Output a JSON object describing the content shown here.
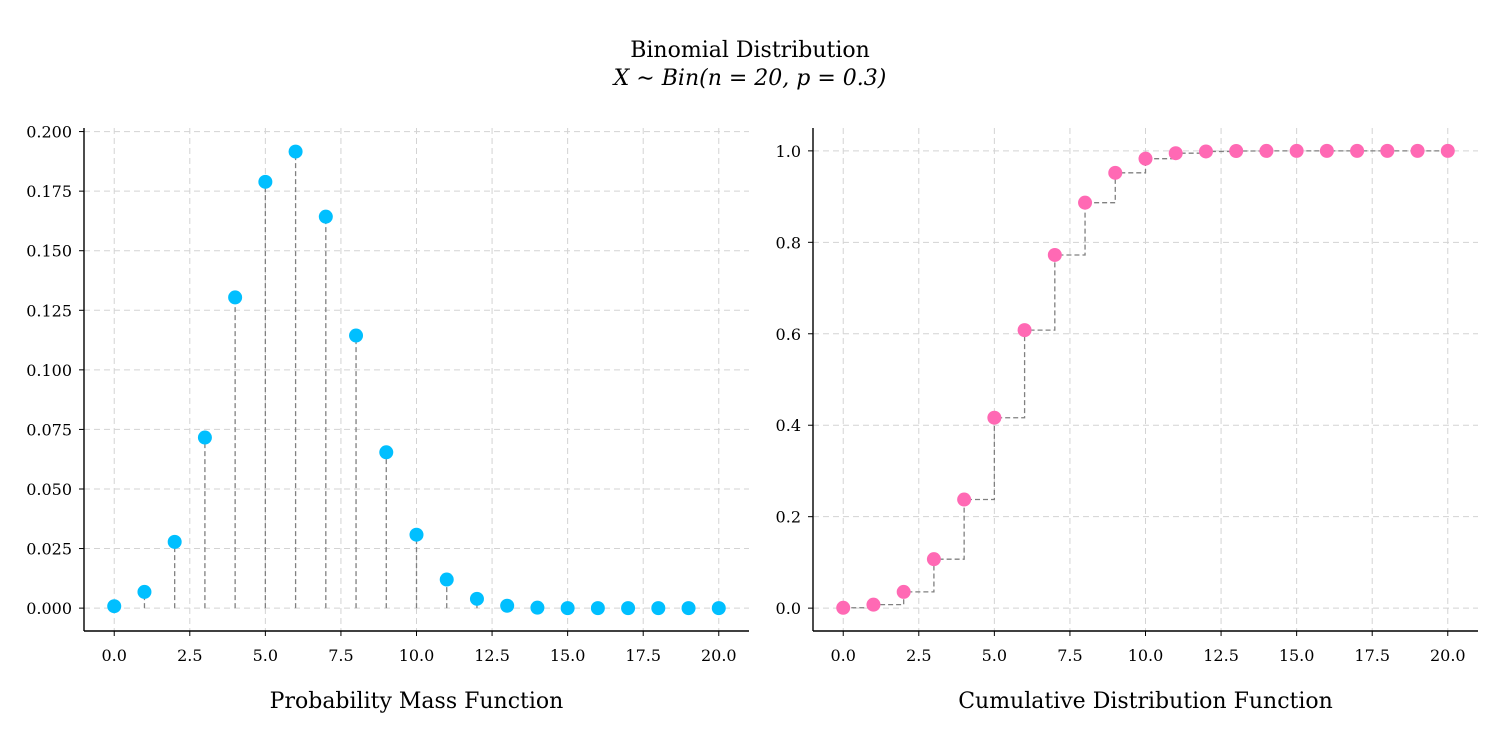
{
  "figure": {
    "title": "Binomial Distribution",
    "subtitle": "X ∼ Bin(n = 20, p = 0.3)"
  },
  "colors": {
    "pmf_marker": "#00BFFF",
    "cdf_marker": "#FF69B4",
    "stem_line": "#808080",
    "grid": "#D3D3D3",
    "axis": "#000000"
  },
  "chart_data": [
    {
      "type": "stem",
      "id": "pmf",
      "title": "",
      "xlabel": "Probability Mass Function",
      "ylabel": "",
      "xlim": [
        -1,
        21
      ],
      "ylim": [
        -0.0096,
        0.2015
      ],
      "xticks": [
        0,
        2.5,
        5,
        7.5,
        10,
        12.5,
        15,
        17.5,
        20
      ],
      "xtick_labels": [
        "0.0",
        "2.5",
        "5.0",
        "7.5",
        "10.0",
        "12.5",
        "15.0",
        "17.5",
        "20.0"
      ],
      "yticks": [
        0,
        0.025,
        0.05,
        0.075,
        0.1,
        0.125,
        0.15,
        0.175,
        0.2
      ],
      "ytick_labels": [
        "0.000",
        "0.025",
        "0.050",
        "0.075",
        "0.100",
        "0.125",
        "0.150",
        "0.175",
        "0.200"
      ],
      "grid": true,
      "x": [
        0,
        1,
        2,
        3,
        4,
        5,
        6,
        7,
        8,
        9,
        10,
        11,
        12,
        13,
        14,
        15,
        16,
        17,
        18,
        19,
        20
      ],
      "values": [
        0.0008,
        0.0068,
        0.0278,
        0.0716,
        0.1304,
        0.1789,
        0.1916,
        0.1643,
        0.1144,
        0.0654,
        0.0308,
        0.012,
        0.0039,
        0.001,
        0.0002,
        0.0,
        0.0,
        0.0,
        0.0,
        0.0,
        0.0
      ]
    },
    {
      "type": "step",
      "id": "cdf",
      "title": "",
      "xlabel": "Cumulative Distribution Function",
      "ylabel": "",
      "xlim": [
        -1,
        21
      ],
      "ylim": [
        -0.05,
        1.05
      ],
      "xticks": [
        0,
        2.5,
        5,
        7.5,
        10,
        12.5,
        15,
        17.5,
        20
      ],
      "xtick_labels": [
        "0.0",
        "2.5",
        "5.0",
        "7.5",
        "10.0",
        "12.5",
        "15.0",
        "17.5",
        "20.0"
      ],
      "yticks": [
        0,
        0.2,
        0.4,
        0.6,
        0.8,
        1.0
      ],
      "ytick_labels": [
        "0.0",
        "0.2",
        "0.4",
        "0.6",
        "0.8",
        "1.0"
      ],
      "grid": true,
      "x": [
        0,
        1,
        2,
        3,
        4,
        5,
        6,
        7,
        8,
        9,
        10,
        11,
        12,
        13,
        14,
        15,
        16,
        17,
        18,
        19,
        20
      ],
      "values": [
        0.0008,
        0.0076,
        0.0355,
        0.1071,
        0.2375,
        0.4164,
        0.608,
        0.7723,
        0.8867,
        0.952,
        0.9829,
        0.9949,
        0.9987,
        0.9997,
        0.9999,
        1.0,
        1.0,
        1.0,
        1.0,
        1.0,
        1.0
      ]
    }
  ]
}
